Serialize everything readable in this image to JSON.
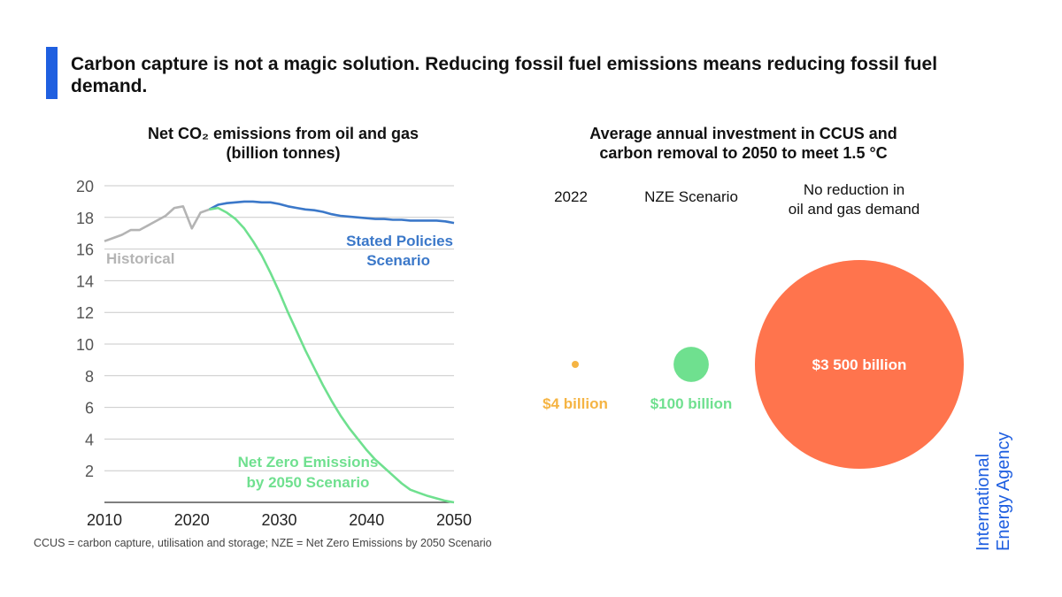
{
  "headline": "Carbon capture is not a magic solution. Reducing fossil fuel emissions means reducing fossil fuel demand.",
  "colors": {
    "accent": "#1f5fe0",
    "historical": "#b4b4b4",
    "stated_policies": "#3b78c9",
    "nze": "#6fe08f",
    "bubble_2022": "#f5b443",
    "bubble_nze": "#6fe08f",
    "bubble_no_reduction": "#ff744d"
  },
  "chart_data": [
    {
      "type": "line",
      "title": "Net CO₂ emissions from oil and gas",
      "subtitle": "(billion tonnes)",
      "xlabel": "",
      "ylabel": "",
      "xlim": [
        2010,
        2050
      ],
      "ylim": [
        0,
        20
      ],
      "x_ticks": [
        2010,
        2020,
        2030,
        2040,
        2050
      ],
      "y_ticks": [
        2,
        4,
        6,
        8,
        10,
        12,
        14,
        16,
        18,
        20
      ],
      "grid": true,
      "series": [
        {
          "name": "Historical",
          "color_key": "historical",
          "points": [
            [
              2010,
              16.5
            ],
            [
              2011,
              16.7
            ],
            [
              2012,
              16.9
            ],
            [
              2013,
              17.2
            ],
            [
              2014,
              17.2
            ],
            [
              2015,
              17.5
            ],
            [
              2016,
              17.8
            ],
            [
              2017,
              18.1
            ],
            [
              2018,
              18.6
            ],
            [
              2019,
              18.7
            ],
            [
              2020,
              17.3
            ],
            [
              2021,
              18.3
            ],
            [
              2022,
              18.5
            ]
          ]
        },
        {
          "name": "Stated Policies Scenario",
          "color_key": "stated_policies",
          "points": [
            [
              2022,
              18.5
            ],
            [
              2023,
              18.8
            ],
            [
              2024,
              18.9
            ],
            [
              2025,
              18.95
            ],
            [
              2026,
              19.0
            ],
            [
              2027,
              19.0
            ],
            [
              2028,
              18.95
            ],
            [
              2029,
              18.95
            ],
            [
              2030,
              18.85
            ],
            [
              2031,
              18.7
            ],
            [
              2032,
              18.6
            ],
            [
              2033,
              18.5
            ],
            [
              2034,
              18.45
            ],
            [
              2035,
              18.35
            ],
            [
              2036,
              18.2
            ],
            [
              2037,
              18.1
            ],
            [
              2038,
              18.05
            ],
            [
              2039,
              18.0
            ],
            [
              2040,
              17.95
            ],
            [
              2041,
              17.9
            ],
            [
              2042,
              17.9
            ],
            [
              2043,
              17.85
            ],
            [
              2044,
              17.85
            ],
            [
              2045,
              17.8
            ],
            [
              2046,
              17.8
            ],
            [
              2047,
              17.8
            ],
            [
              2048,
              17.8
            ],
            [
              2049,
              17.75
            ],
            [
              2050,
              17.65
            ]
          ]
        },
        {
          "name": "Net Zero Emissions by 2050 Scenario",
          "color_key": "nze",
          "points": [
            [
              2022,
              18.5
            ],
            [
              2023,
              18.6
            ],
            [
              2024,
              18.3
            ],
            [
              2025,
              17.9
            ],
            [
              2026,
              17.3
            ],
            [
              2027,
              16.5
            ],
            [
              2028,
              15.6
            ],
            [
              2029,
              14.5
            ],
            [
              2030,
              13.3
            ],
            [
              2031,
              12.0
            ],
            [
              2032,
              10.8
            ],
            [
              2033,
              9.6
            ],
            [
              2034,
              8.5
            ],
            [
              2035,
              7.4
            ],
            [
              2036,
              6.4
            ],
            [
              2037,
              5.5
            ],
            [
              2038,
              4.7
            ],
            [
              2039,
              4.0
            ],
            [
              2040,
              3.3
            ],
            [
              2041,
              2.7
            ],
            [
              2042,
              2.2
            ],
            [
              2043,
              1.7
            ],
            [
              2044,
              1.2
            ],
            [
              2045,
              0.8
            ],
            [
              2046,
              0.6
            ],
            [
              2047,
              0.4
            ],
            [
              2048,
              0.25
            ],
            [
              2049,
              0.1
            ],
            [
              2050,
              0.0
            ]
          ]
        }
      ],
      "annotations": {
        "historical": "Historical",
        "stated_line1": "Stated Policies",
        "stated_line2": "Scenario",
        "nze_line1": "Net Zero Emissions",
        "nze_line2": "by 2050 Scenario"
      }
    },
    {
      "type": "bubble",
      "title_line1": "Average annual investment in CCUS and",
      "title_line2": "carbon removal to 2050 to meet 1.5 °C",
      "unit": "billion USD",
      "categories": [
        "2022",
        "NZE Scenario",
        "No reduction in oil and gas demand"
      ],
      "values": [
        4,
        100,
        3500
      ],
      "value_labels": [
        "$4 billion",
        "$100 billion",
        "$3 500 billion"
      ],
      "colors": [
        "#f5b443",
        "#6fe08f",
        "#ff744d"
      ]
    }
  ],
  "headers": {
    "h2022": "2022",
    "nze": "NZE Scenario",
    "noreduce_line1": "No reduction in",
    "noreduce_line2": "oil and gas demand"
  },
  "footnote": "CCUS = carbon capture, utilisation and storage; NZE = Net Zero Emissions by 2050 Scenario",
  "brand": {
    "line1": "International",
    "line2": "Energy Agency"
  }
}
